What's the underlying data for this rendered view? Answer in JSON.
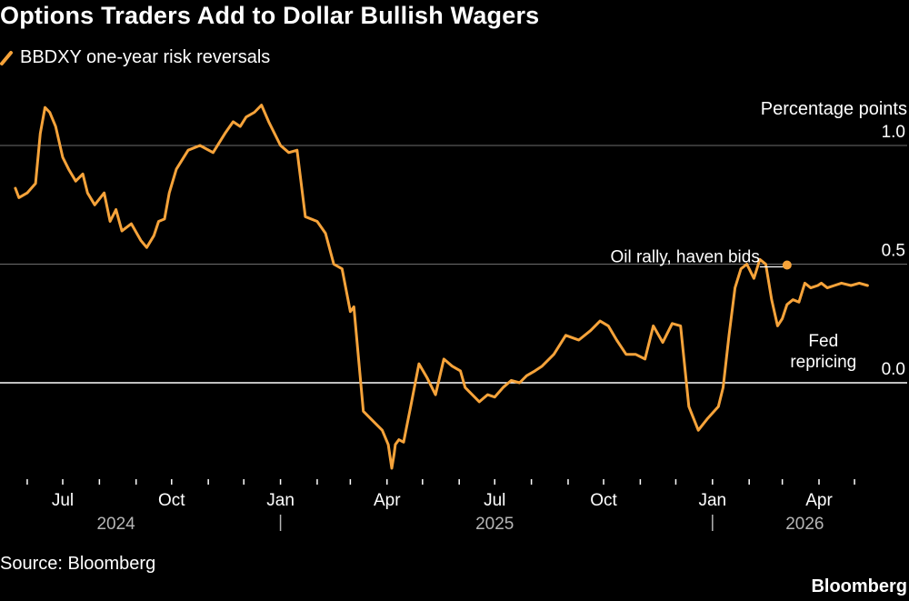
{
  "title": "Options Traders Add to Dollar Bullish Wagers",
  "source": "Source: Bloomberg",
  "brand": "Bloomberg",
  "colors": {
    "background": "#000000",
    "series": "#f6a33a",
    "text": "#ffffff",
    "grid": "#6e6e6e",
    "tick_label": "#ffffff",
    "year_label": "#b5b5b5"
  },
  "chart_data": {
    "type": "line",
    "units": "Percentage points",
    "ylim": [
      -0.38,
      1.22
    ],
    "yticks": [
      0.0,
      0.5,
      1.0
    ],
    "ytick_labels": [
      "0.0",
      "0.5",
      "1.0"
    ],
    "grid": "horizontal",
    "legend": "top-left",
    "x_months": [
      {
        "label": "Jul",
        "date": "2024-07-01"
      },
      {
        "label": "Oct",
        "date": "2024-10-01"
      },
      {
        "label": "Jan",
        "date": "2025-01-01"
      },
      {
        "label": "Apr",
        "date": "2025-04-01"
      },
      {
        "label": "Jul",
        "date": "2025-07-01"
      },
      {
        "label": "Oct",
        "date": "2025-10-01"
      },
      {
        "label": "Jan",
        "date": "2026-01-01"
      },
      {
        "label": "Apr",
        "date": "2026-04-01"
      }
    ],
    "x_years": [
      {
        "label": "2024",
        "date": "2024-08-15"
      },
      {
        "label": "2025",
        "date": "2025-07-01"
      },
      {
        "label": "2026",
        "date": "2026-03-20"
      }
    ],
    "year_dividers": [
      "2025-01-01",
      "2026-01-01"
    ],
    "series": [
      {
        "name": "BBDXY one-year risk reversals",
        "x": [
          "2024-05-22",
          "2024-05-25",
          "2024-06-01",
          "2024-06-08",
          "2024-06-12",
          "2024-06-16",
          "2024-06-20",
          "2024-06-25",
          "2024-07-01",
          "2024-07-06",
          "2024-07-12",
          "2024-07-18",
          "2024-07-22",
          "2024-07-28",
          "2024-08-05",
          "2024-08-10",
          "2024-08-15",
          "2024-08-20",
          "2024-08-28",
          "2024-09-05",
          "2024-09-10",
          "2024-09-16",
          "2024-09-20",
          "2024-09-25",
          "2024-09-29",
          "2024-10-05",
          "2024-10-15",
          "2024-10-25",
          "2024-11-05",
          "2024-11-15",
          "2024-11-22",
          "2024-11-28",
          "2024-12-03",
          "2024-12-10",
          "2024-12-16",
          "2024-12-22",
          "2025-01-01",
          "2025-01-08",
          "2025-01-15",
          "2025-01-22",
          "2025-02-01",
          "2025-02-08",
          "2025-02-15",
          "2025-02-22",
          "2025-03-01",
          "2025-03-04",
          "2025-03-08",
          "2025-03-12",
          "2025-03-20",
          "2025-03-28",
          "2025-04-02",
          "2025-04-05",
          "2025-04-07",
          "2025-04-08",
          "2025-04-11",
          "2025-04-15",
          "2025-04-21",
          "2025-04-28",
          "2025-05-05",
          "2025-05-12",
          "2025-05-19",
          "2025-05-26",
          "2025-06-02",
          "2025-06-06",
          "2025-06-12",
          "2025-06-18",
          "2025-06-25",
          "2025-07-01",
          "2025-07-08",
          "2025-07-15",
          "2025-07-22",
          "2025-07-28",
          "2025-08-04",
          "2025-08-10",
          "2025-08-20",
          "2025-08-30",
          "2025-09-10",
          "2025-09-20",
          "2025-09-28",
          "2025-10-05",
          "2025-10-12",
          "2025-10-20",
          "2025-10-28",
          "2025-11-05",
          "2025-11-12",
          "2025-11-20",
          "2025-11-28",
          "2025-12-05",
          "2025-12-12",
          "2025-12-20",
          "2025-12-28",
          "2026-01-06",
          "2026-01-10",
          "2026-01-15",
          "2026-01-20",
          "2026-01-25",
          "2026-01-30",
          "2026-02-05",
          "2026-02-10",
          "2026-02-15",
          "2026-02-20",
          "2026-02-25",
          "2026-03-01",
          "2026-03-05",
          "2026-03-10",
          "2026-03-15",
          "2026-03-20",
          "2026-03-25",
          "2026-03-31",
          "2026-04-03",
          "2026-04-08",
          "2026-04-14",
          "2026-04-20",
          "2026-04-28",
          "2026-05-05",
          "2026-05-12"
        ],
        "values": [
          0.82,
          0.78,
          0.8,
          0.84,
          1.05,
          1.16,
          1.14,
          1.08,
          0.95,
          0.9,
          0.85,
          0.88,
          0.8,
          0.75,
          0.8,
          0.68,
          0.73,
          0.64,
          0.67,
          0.6,
          0.57,
          0.62,
          0.68,
          0.69,
          0.8,
          0.9,
          0.98,
          1.0,
          0.97,
          1.05,
          1.1,
          1.08,
          1.12,
          1.14,
          1.17,
          1.1,
          1.0,
          0.97,
          0.98,
          0.7,
          0.68,
          0.63,
          0.5,
          0.48,
          0.3,
          0.32,
          0.1,
          -0.12,
          -0.16,
          -0.2,
          -0.26,
          -0.36,
          -0.3,
          -0.26,
          -0.24,
          -0.25,
          -0.1,
          0.08,
          0.02,
          -0.05,
          0.1,
          0.07,
          0.05,
          -0.02,
          -0.05,
          -0.08,
          -0.05,
          -0.06,
          -0.02,
          0.01,
          0.0,
          0.03,
          0.05,
          0.07,
          0.12,
          0.2,
          0.18,
          0.22,
          0.26,
          0.24,
          0.18,
          0.12,
          0.12,
          0.1,
          0.24,
          0.17,
          0.25,
          0.24,
          -0.1,
          -0.2,
          -0.15,
          -0.1,
          -0.02,
          0.2,
          0.4,
          0.48,
          0.5,
          0.44,
          0.52,
          0.5,
          0.35,
          0.24,
          0.27,
          0.33,
          0.35,
          0.34,
          0.42,
          0.4,
          0.41,
          0.42,
          0.4,
          0.41,
          0.42,
          0.41,
          0.42,
          0.41
        ]
      }
    ],
    "annotations": [
      {
        "text": "Oil rally, haven bids",
        "x": "2026-03-05",
        "y": 0.5
      },
      {
        "text": "Fed repricing",
        "lines": [
          "Fed",
          "repricing"
        ],
        "x": "2026-03-28",
        "y": 0.16
      }
    ]
  }
}
